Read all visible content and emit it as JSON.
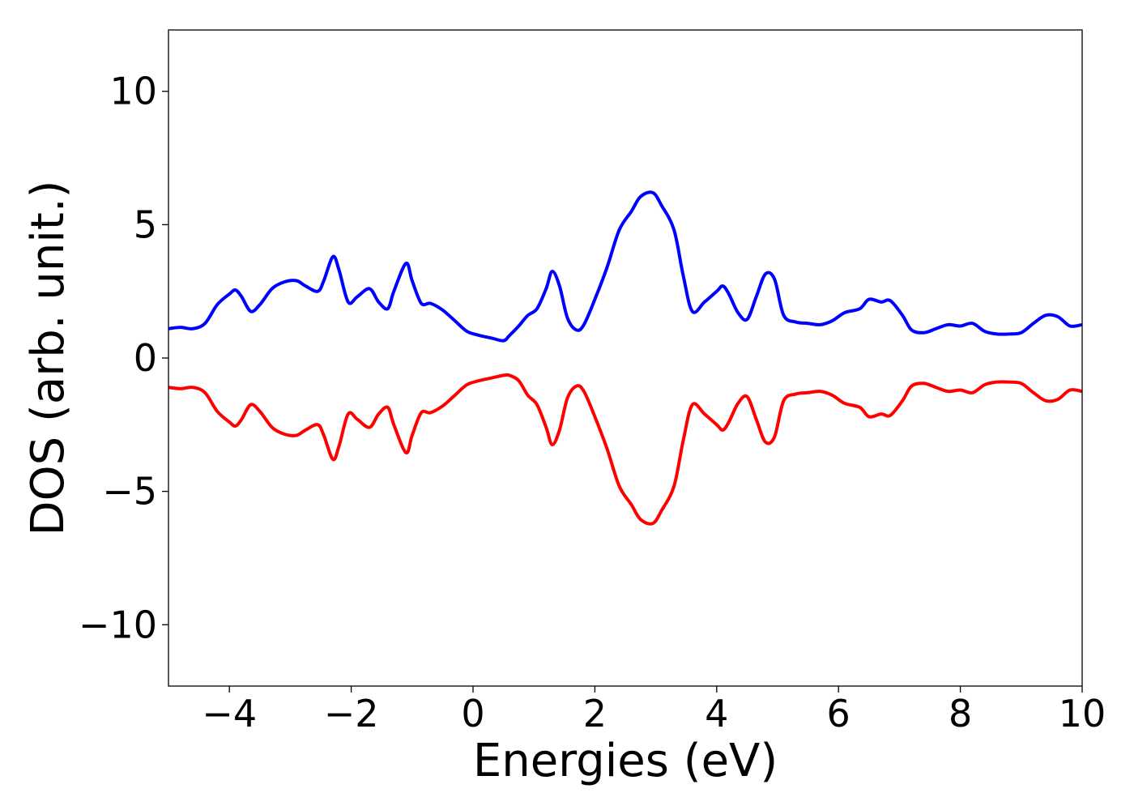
{
  "chart_data": {
    "type": "line",
    "title": "",
    "xlabel": "Energies (eV)",
    "ylabel": "DOS (arb. unit.)",
    "xlim": [
      -5,
      10
    ],
    "ylim": [
      -12.3,
      12.3
    ],
    "grid": false,
    "x_ticks": [
      {
        "value": -4,
        "label": "−4"
      },
      {
        "value": -2,
        "label": "−2"
      },
      {
        "value": 0,
        "label": "0"
      },
      {
        "value": 2,
        "label": "2"
      },
      {
        "value": 4,
        "label": "4"
      },
      {
        "value": 6,
        "label": "6"
      },
      {
        "value": 8,
        "label": "8"
      },
      {
        "value": 10,
        "label": "10"
      }
    ],
    "y_ticks": [
      {
        "value": 10,
        "label": "10"
      },
      {
        "value": 5,
        "label": "5"
      },
      {
        "value": 0,
        "label": "0"
      },
      {
        "value": -5,
        "label": "−5"
      },
      {
        "value": -10,
        "label": "−10"
      }
    ],
    "series": [
      {
        "color": "#0000ff",
        "x": [
          -5.0,
          -4.8,
          -4.6,
          -4.4,
          -4.2,
          -4.0,
          -3.9,
          -3.8,
          -3.65,
          -3.5,
          -3.3,
          -3.1,
          -2.9,
          -2.75,
          -2.55,
          -2.45,
          -2.3,
          -2.2,
          -2.05,
          -1.9,
          -1.7,
          -1.55,
          -1.4,
          -1.3,
          -1.1,
          -1.0,
          -0.85,
          -0.7,
          -0.5,
          -0.3,
          -0.1,
          0.1,
          0.3,
          0.5,
          0.6,
          0.75,
          0.9,
          1.05,
          1.2,
          1.3,
          1.42,
          1.55,
          1.7,
          1.82,
          2.0,
          2.2,
          2.4,
          2.6,
          2.75,
          2.95,
          3.1,
          3.3,
          3.45,
          3.6,
          3.8,
          4.0,
          4.1,
          4.2,
          4.35,
          4.5,
          4.65,
          4.8,
          4.95,
          5.1,
          5.3,
          5.5,
          5.7,
          5.9,
          6.1,
          6.35,
          6.5,
          6.7,
          6.85,
          7.05,
          7.2,
          7.4,
          7.6,
          7.8,
          8.0,
          8.2,
          8.4,
          8.6,
          8.8,
          9.0,
          9.2,
          9.4,
          9.6,
          9.8,
          10.0
        ],
        "values": [
          1.1,
          1.15,
          1.1,
          1.3,
          2.0,
          2.4,
          2.55,
          2.3,
          1.75,
          2.0,
          2.6,
          2.85,
          2.9,
          2.7,
          2.5,
          2.9,
          3.8,
          3.3,
          2.1,
          2.3,
          2.6,
          2.1,
          1.85,
          2.5,
          3.55,
          2.9,
          2.05,
          2.05,
          1.8,
          1.4,
          1.0,
          0.85,
          0.75,
          0.65,
          0.85,
          1.2,
          1.6,
          1.85,
          2.6,
          3.25,
          2.7,
          1.5,
          1.05,
          1.25,
          2.2,
          3.4,
          4.8,
          5.5,
          6.05,
          6.2,
          5.7,
          4.8,
          3.1,
          1.75,
          2.1,
          2.5,
          2.7,
          2.4,
          1.7,
          1.45,
          2.3,
          3.15,
          2.95,
          1.6,
          1.35,
          1.3,
          1.25,
          1.4,
          1.7,
          1.85,
          2.2,
          2.1,
          2.15,
          1.6,
          1.05,
          0.95,
          1.1,
          1.25,
          1.2,
          1.3,
          1.0,
          0.9,
          0.9,
          0.95,
          1.3,
          1.6,
          1.55,
          1.2,
          1.25
        ]
      },
      {
        "color": "#ff0000",
        "x": [
          -5.0,
          -4.8,
          -4.6,
          -4.4,
          -4.2,
          -4.0,
          -3.9,
          -3.8,
          -3.65,
          -3.5,
          -3.3,
          -3.1,
          -2.9,
          -2.75,
          -2.55,
          -2.45,
          -2.3,
          -2.2,
          -2.05,
          -1.9,
          -1.7,
          -1.55,
          -1.4,
          -1.3,
          -1.1,
          -1.0,
          -0.85,
          -0.7,
          -0.5,
          -0.3,
          -0.1,
          0.1,
          0.3,
          0.5,
          0.6,
          0.75,
          0.9,
          1.05,
          1.2,
          1.3,
          1.42,
          1.55,
          1.7,
          1.82,
          2.0,
          2.2,
          2.4,
          2.6,
          2.75,
          2.95,
          3.1,
          3.3,
          3.45,
          3.6,
          3.8,
          4.0,
          4.1,
          4.2,
          4.35,
          4.5,
          4.65,
          4.8,
          4.95,
          5.1,
          5.3,
          5.5,
          5.7,
          5.9,
          6.1,
          6.35,
          6.5,
          6.7,
          6.85,
          7.05,
          7.2,
          7.4,
          7.6,
          7.8,
          8.0,
          8.2,
          8.4,
          8.6,
          8.8,
          9.0,
          9.2,
          9.4,
          9.6,
          9.8,
          10.0
        ],
        "values": [
          -1.1,
          -1.15,
          -1.1,
          -1.3,
          -2.0,
          -2.4,
          -2.55,
          -2.3,
          -1.75,
          -2.0,
          -2.6,
          -2.85,
          -2.9,
          -2.7,
          -2.5,
          -2.9,
          -3.8,
          -3.3,
          -2.1,
          -2.3,
          -2.6,
          -2.1,
          -1.85,
          -2.5,
          -3.55,
          -2.9,
          -2.05,
          -2.05,
          -1.8,
          -1.4,
          -1.0,
          -0.85,
          -0.75,
          -0.65,
          -0.65,
          -0.85,
          -1.4,
          -1.75,
          -2.6,
          -3.25,
          -2.7,
          -1.5,
          -1.05,
          -1.25,
          -2.2,
          -3.4,
          -4.8,
          -5.5,
          -6.05,
          -6.2,
          -5.7,
          -4.8,
          -3.1,
          -1.75,
          -2.1,
          -2.5,
          -2.7,
          -2.4,
          -1.7,
          -1.45,
          -2.3,
          -3.15,
          -2.95,
          -1.6,
          -1.35,
          -1.3,
          -1.25,
          -1.4,
          -1.7,
          -1.85,
          -2.2,
          -2.1,
          -2.15,
          -1.6,
          -1.05,
          -0.95,
          -1.1,
          -1.25,
          -1.2,
          -1.3,
          -1.0,
          -0.9,
          -0.9,
          -0.95,
          -1.3,
          -1.6,
          -1.55,
          -1.2,
          -1.25
        ]
      }
    ]
  }
}
